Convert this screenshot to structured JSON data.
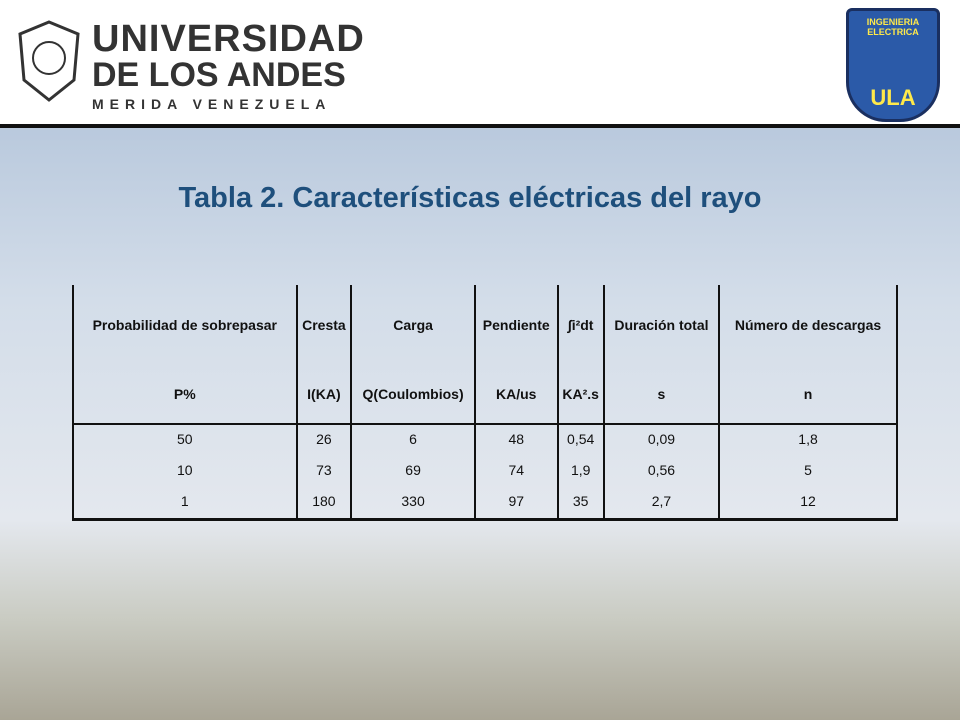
{
  "header": {
    "university": [
      "UNIVERSIDAD",
      "DE LOS ANDES",
      "MERIDA VENEZUELA"
    ],
    "badge": [
      "INGENIERIA ELECTRICA",
      "ULA"
    ]
  },
  "title": "Tabla 2. Características eléctricas del rayo",
  "table": {
    "headers": [
      "Probabilidad de sobrepasar",
      "Cresta",
      "Carga",
      "Pendiente",
      "∫i²dt",
      "Duración total",
      "Número de descargas"
    ],
    "units": [
      "P%",
      "I(KA)",
      "Q(Coulombios)",
      "KA/us",
      "KA².s",
      "s",
      "n"
    ],
    "rows": [
      [
        50,
        26,
        6,
        48,
        "0,54",
        "0,09",
        "1,8"
      ],
      [
        10,
        73,
        69,
        74,
        "1,9",
        "0,56",
        5
      ],
      [
        1,
        180,
        330,
        97,
        35,
        "2,7",
        12
      ]
    ]
  }
}
